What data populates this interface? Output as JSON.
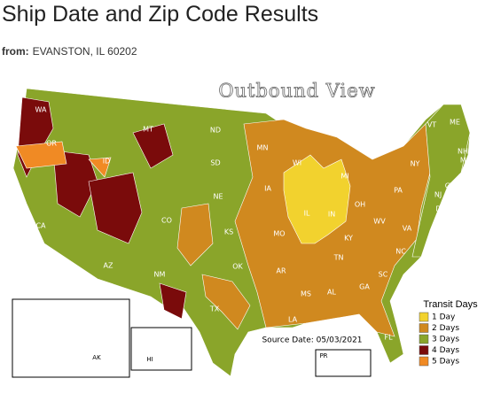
{
  "header": {
    "title": "Ship Date and Zip Code Results",
    "origin_label": "from:",
    "origin": "EVANSTON, IL 60202"
  },
  "map": {
    "title": "Outbound View",
    "state_labels": [
      "WA",
      "OR",
      "CA",
      "ID",
      "MT",
      "ND",
      "SD",
      "NE",
      "CO",
      "KS",
      "OK",
      "TX",
      "NM",
      "AZ",
      "MN",
      "IA",
      "WI",
      "MI",
      "IL",
      "IN",
      "OH",
      "MO",
      "KY",
      "TN",
      "AR",
      "MS",
      "AL",
      "GA",
      "LA",
      "FL",
      "SC",
      "NC",
      "VA",
      "WV",
      "PA",
      "NY",
      "MD",
      "DE",
      "NJ",
      "CT",
      "RI",
      "MA",
      "NH",
      "VT",
      "ME"
    ],
    "insets": [
      "AK",
      "HI",
      "PR"
    ],
    "source": "Source Date: 05/03/2021"
  },
  "legend": {
    "title": "Transit Days",
    "items": [
      {
        "label": "1 Day",
        "color": "#f2d22e"
      },
      {
        "label": "2 Days",
        "color": "#d0891f"
      },
      {
        "label": "3 Days",
        "color": "#8aa52a"
      },
      {
        "label": "4 Days",
        "color": "#7a0b0b"
      },
      {
        "label": "5 Days",
        "color": "#f08a24"
      }
    ]
  }
}
